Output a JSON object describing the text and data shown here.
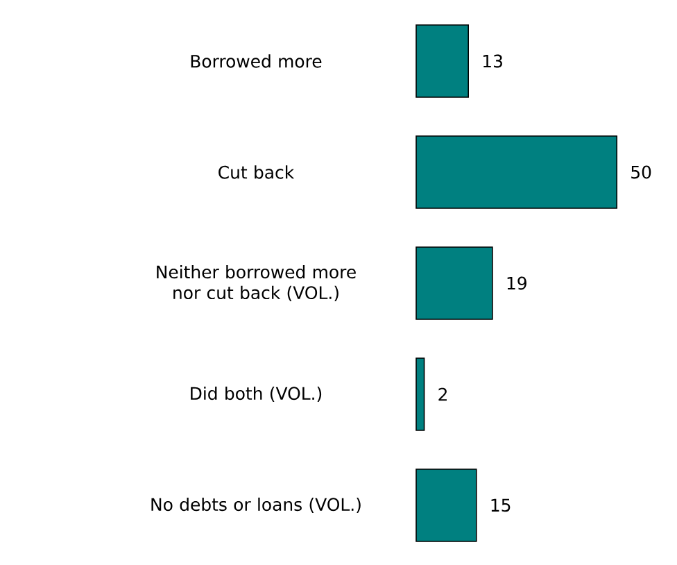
{
  "chart_data": {
    "type": "bar",
    "orientation": "horizontal",
    "categories": [
      "Borrowed more",
      "Cut back",
      "Neither borrowed more nor cut back (VOL.)",
      "Did both (VOL.)",
      "No debts or loans (VOL.)"
    ],
    "values": [
      13,
      50,
      19,
      2,
      15
    ],
    "color": "#008080",
    "data_labels": true
  }
}
